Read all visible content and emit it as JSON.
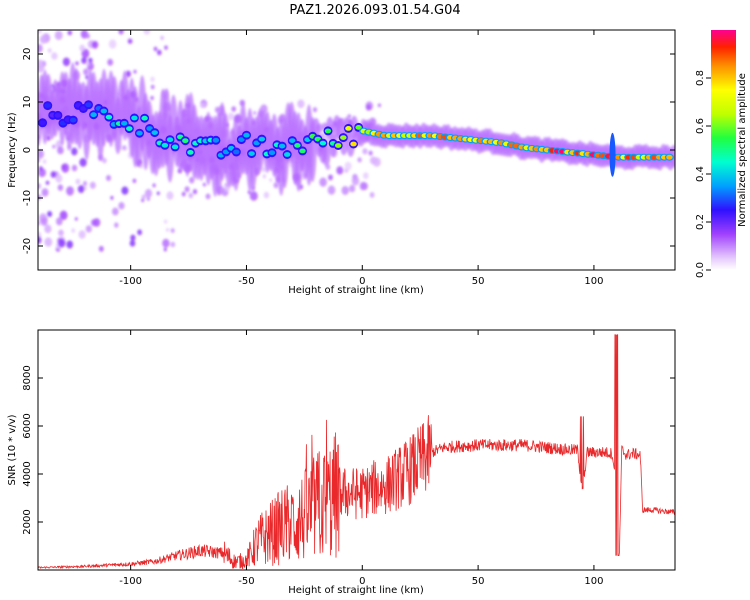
{
  "title": "PAZ1.2026.093.01.54.G04",
  "chart_data": [
    {
      "type": "heatmap",
      "xlabel": "Height of straight line (km)",
      "ylabel": "Frequency (Hz)",
      "xlim": [
        -140,
        135
      ],
      "ylim": [
        -25,
        25
      ],
      "xticks": [
        -100,
        -50,
        0,
        50,
        100
      ],
      "xtick_labels": [
        "-100",
        "-50",
        "0",
        "50",
        "100"
      ],
      "yticks": [
        -20,
        -10,
        0,
        10,
        20
      ],
      "ytick_labels": [
        "-20",
        "-10",
        "0",
        "10",
        "20"
      ],
      "colorbar": {
        "label": "Normalized spectral amplitude",
        "range": [
          0,
          1
        ],
        "ticks": [
          0,
          0.2,
          0.4,
          0.6,
          0.8
        ],
        "tick_labels": [
          "0.0",
          "0.2",
          "0.4",
          "0.6",
          "0.8"
        ]
      },
      "ridge": {
        "x": [
          -140,
          -120,
          -110,
          -100,
          -90,
          -80,
          -70,
          -60,
          -50,
          -40,
          -30,
          -20,
          -10,
          0,
          10,
          20,
          30,
          40,
          50,
          60,
          70,
          80,
          90,
          100,
          110,
          120,
          135
        ],
        "freq": [
          7,
          8,
          7,
          6,
          4,
          2,
          0,
          0,
          1,
          0,
          1,
          2,
          2,
          4,
          3,
          3,
          3,
          2.5,
          2,
          1.5,
          0.5,
          0,
          -0.5,
          -1,
          -1.5,
          -1.5,
          -1.5
        ],
        "amplitude": [
          0.25,
          0.3,
          0.45,
          0.5,
          0.45,
          0.5,
          0.5,
          0.4,
          0.4,
          0.45,
          0.5,
          0.55,
          0.65,
          0.8,
          0.9,
          0.85,
          0.9,
          0.9,
          0.95,
          0.95,
          0.95,
          0.95,
          0.95,
          0.95,
          0.9,
          0.9,
          0.9
        ]
      }
    },
    {
      "type": "line",
      "xlabel": "Height of straight line (km)",
      "ylabel": "SNR (10 * v/v)",
      "xlim": [
        -140,
        135
      ],
      "ylim": [
        0,
        10000
      ],
      "xticks": [
        -100,
        -50,
        0,
        50,
        100
      ],
      "xtick_labels": [
        "-100",
        "-50",
        "0",
        "50",
        "100"
      ],
      "yticks": [
        2000,
        4000,
        6000,
        8000
      ],
      "ytick_labels": [
        "2000",
        "4000",
        "6000",
        "8000"
      ],
      "series": [
        {
          "name": "SNR",
          "color": "#e8282a",
          "x": [
            -140,
            -120,
            -100,
            -90,
            -80,
            -70,
            -60,
            -55,
            -50,
            -45,
            -40,
            -35,
            -30,
            -25,
            -20,
            -15,
            -10,
            -5,
            0,
            5,
            10,
            15,
            20,
            25,
            30,
            35,
            40,
            50,
            60,
            70,
            80,
            90,
            93,
            95,
            97,
            100,
            105,
            108,
            110,
            111,
            112,
            114,
            117,
            120,
            121,
            125,
            130,
            135
          ],
          "values": [
            100,
            150,
            250,
            350,
            600,
            800,
            700,
            350,
            400,
            1200,
            1500,
            1800,
            2000,
            2200,
            2600,
            2800,
            3200,
            3200,
            3200,
            3400,
            3500,
            3800,
            4100,
            4500,
            4900,
            5100,
            5150,
            5200,
            5200,
            5200,
            5100,
            5000,
            5000,
            3200,
            4900,
            4900,
            4900,
            4850,
            3000,
            600,
            5000,
            4800,
            4850,
            4800,
            2500,
            2500,
            2450,
            2400
          ]
        }
      ]
    }
  ]
}
